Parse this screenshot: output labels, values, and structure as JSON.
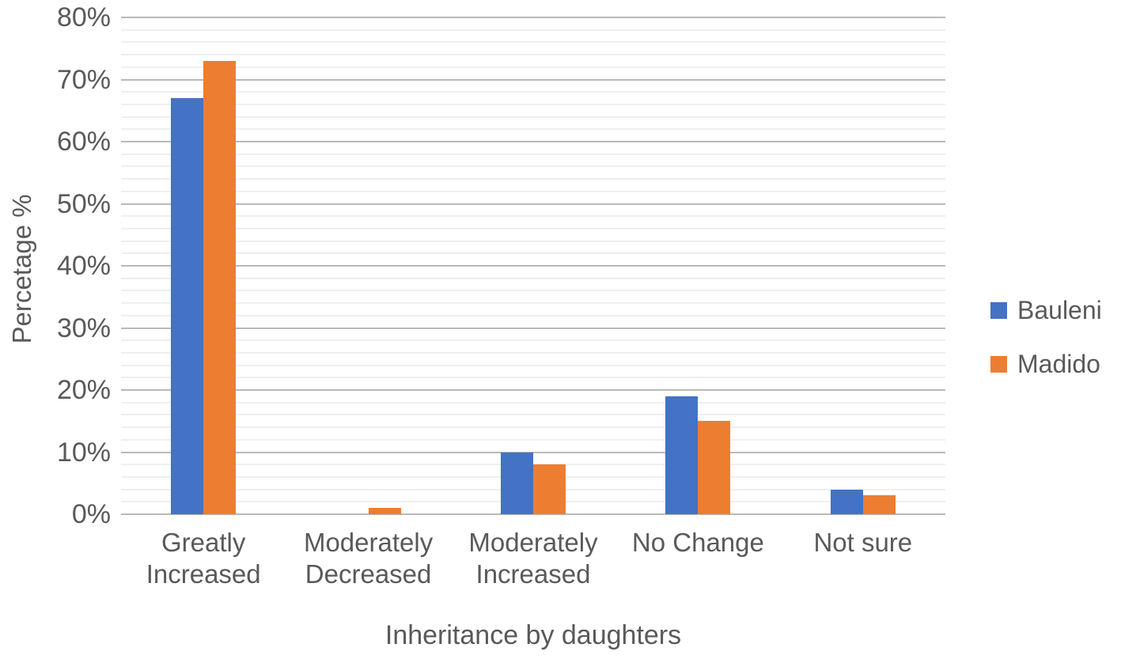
{
  "chart_data": {
    "type": "bar",
    "title": "",
    "xlabel": "Inheritance by daughters",
    "ylabel": "Percetage %",
    "categories": [
      "Greatly Increased",
      "Moderately Decreased",
      "Moderately Increased",
      "No Change",
      "Not sure"
    ],
    "series": [
      {
        "name": "Bauleni",
        "color": "#4472C4",
        "values": [
          67,
          0,
          10,
          19,
          4
        ]
      },
      {
        "name": "Madido",
        "color": "#ED7D31",
        "values": [
          73,
          1,
          8,
          15,
          3
        ]
      }
    ],
    "ylim": [
      0,
      80
    ],
    "y_tick_step": 10,
    "y_minor_step": 2,
    "y_tick_suffix": "%",
    "grid": "horizontal",
    "legend_position": "right",
    "colors": {
      "background": "#FFFFFF",
      "text": "#595959",
      "major_gridline": "#B9B9B9",
      "minor_gridline": "#EFEFEF"
    }
  }
}
